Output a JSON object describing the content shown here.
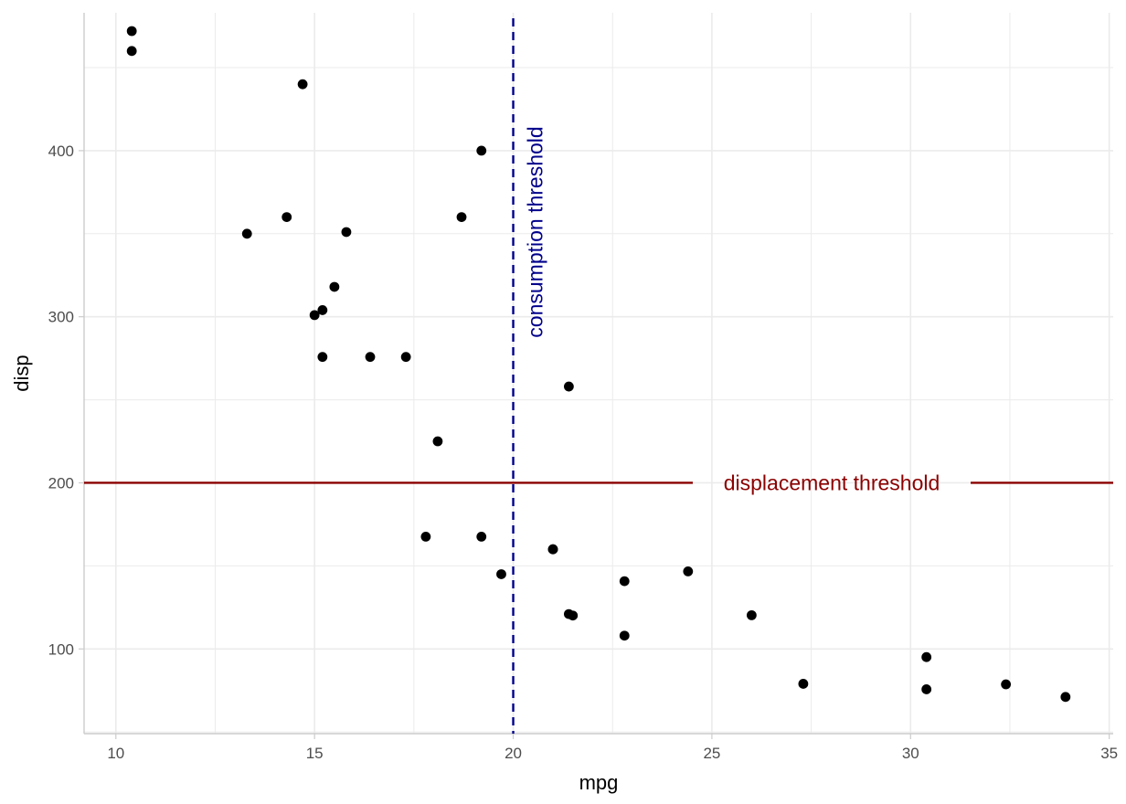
{
  "chart_data": {
    "type": "scatter",
    "title": "",
    "xlabel": "mpg",
    "ylabel": "disp",
    "xlim": [
      9.2,
      35.1
    ],
    "ylim": [
      49,
      483
    ],
    "x_ticks": [
      10,
      15,
      20,
      25,
      30,
      35
    ],
    "y_ticks": [
      100,
      200,
      300,
      400
    ],
    "grid": true,
    "legend": "none",
    "colors": {
      "points": "#000000",
      "grid": "#ebebeb",
      "axis_line": "#cccccc",
      "vline": "#00008b",
      "hline": "#8b0000"
    },
    "points": [
      {
        "x": 21.0,
        "y": 160.0
      },
      {
        "x": 21.0,
        "y": 160.0
      },
      {
        "x": 22.8,
        "y": 108.0
      },
      {
        "x": 21.4,
        "y": 258.0
      },
      {
        "x": 18.7,
        "y": 360.0
      },
      {
        "x": 18.1,
        "y": 225.0
      },
      {
        "x": 14.3,
        "y": 360.0
      },
      {
        "x": 24.4,
        "y": 146.7
      },
      {
        "x": 22.8,
        "y": 140.8
      },
      {
        "x": 19.2,
        "y": 167.6
      },
      {
        "x": 17.8,
        "y": 167.6
      },
      {
        "x": 16.4,
        "y": 275.8
      },
      {
        "x": 17.3,
        "y": 275.8
      },
      {
        "x": 15.2,
        "y": 275.8
      },
      {
        "x": 10.4,
        "y": 472.0
      },
      {
        "x": 10.4,
        "y": 460.0
      },
      {
        "x": 14.7,
        "y": 440.0
      },
      {
        "x": 32.4,
        "y": 78.7
      },
      {
        "x": 30.4,
        "y": 75.7
      },
      {
        "x": 33.9,
        "y": 71.1
      },
      {
        "x": 21.5,
        "y": 120.1
      },
      {
        "x": 15.5,
        "y": 318.0
      },
      {
        "x": 15.2,
        "y": 304.0
      },
      {
        "x": 13.3,
        "y": 350.0
      },
      {
        "x": 19.2,
        "y": 400.0
      },
      {
        "x": 27.3,
        "y": 79.0
      },
      {
        "x": 26.0,
        "y": 120.3
      },
      {
        "x": 30.4,
        "y": 95.1
      },
      {
        "x": 15.8,
        "y": 351.0
      },
      {
        "x": 19.7,
        "y": 145.0
      },
      {
        "x": 15.0,
        "y": 301.0
      },
      {
        "x": 21.4,
        "y": 121.0
      }
    ],
    "reference_lines": {
      "vertical": {
        "x": 20,
        "label": "consumption threshold",
        "style": "dashed"
      },
      "horizontal": {
        "y": 200,
        "label": "displacement threshold",
        "style": "solid"
      }
    }
  }
}
